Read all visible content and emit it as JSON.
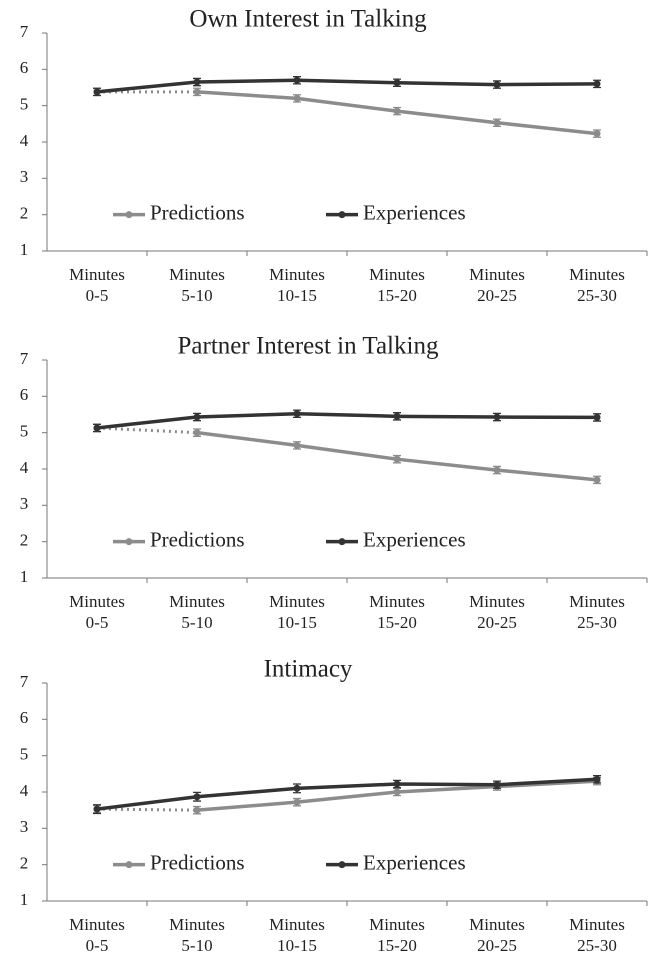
{
  "chart_data": [
    {
      "type": "line",
      "title": "Own Interest in Talking",
      "categories": [
        "Minutes\n0-5",
        "Minutes\n5-10",
        "Minutes\n10-15",
        "Minutes\n15-20",
        "Minutes\n20-25",
        "Minutes\n25-30"
      ],
      "ylim": [
        1,
        7
      ],
      "yticks": [
        1,
        2,
        3,
        4,
        5,
        6,
        7
      ],
      "series": [
        {
          "name": "Predictions",
          "color": "#8c8c8c",
          "line_style_first_segment": "dotted",
          "values": [
            5.38,
            5.38,
            5.2,
            4.85,
            4.53,
            4.23
          ],
          "errors": [
            0.1,
            0.1,
            0.1,
            0.1,
            0.1,
            0.1
          ]
        },
        {
          "name": "Experiences",
          "color": "#333333",
          "values": [
            5.38,
            5.65,
            5.7,
            5.63,
            5.58,
            5.6
          ],
          "errors": [
            0.1,
            0.1,
            0.1,
            0.1,
            0.1,
            0.1
          ]
        }
      ]
    },
    {
      "type": "line",
      "title": "Partner Interest in Talking",
      "categories": [
        "Minutes\n0-5",
        "Minutes\n5-10",
        "Minutes\n10-15",
        "Minutes\n15-20",
        "Minutes\n20-25",
        "Minutes\n25-30"
      ],
      "ylim": [
        1,
        7
      ],
      "yticks": [
        1,
        2,
        3,
        4,
        5,
        6,
        7
      ],
      "series": [
        {
          "name": "Predictions",
          "color": "#8c8c8c",
          "line_style_first_segment": "dotted",
          "values": [
            5.13,
            5.0,
            4.65,
            4.27,
            3.97,
            3.7
          ],
          "errors": [
            0.1,
            0.1,
            0.1,
            0.1,
            0.1,
            0.1
          ]
        },
        {
          "name": "Experiences",
          "color": "#333333",
          "values": [
            5.13,
            5.43,
            5.52,
            5.45,
            5.43,
            5.42
          ],
          "errors": [
            0.1,
            0.1,
            0.1,
            0.1,
            0.1,
            0.1
          ]
        }
      ]
    },
    {
      "type": "line",
      "title": "Intimacy",
      "categories": [
        "Minutes\n0-5",
        "Minutes\n5-10",
        "Minutes\n10-15",
        "Minutes\n15-20",
        "Minutes\n20-25",
        "Minutes\n25-30"
      ],
      "ylim": [
        1,
        7
      ],
      "yticks": [
        1,
        2,
        3,
        4,
        5,
        6,
        7
      ],
      "series": [
        {
          "name": "Predictions",
          "color": "#8c8c8c",
          "line_style_first_segment": "dotted",
          "values": [
            3.53,
            3.5,
            3.72,
            4.0,
            4.15,
            4.3
          ],
          "errors": [
            0.1,
            0.1,
            0.1,
            0.1,
            0.1,
            0.1
          ]
        },
        {
          "name": "Experiences",
          "color": "#333333",
          "values": [
            3.53,
            3.87,
            4.1,
            4.22,
            4.2,
            4.35
          ],
          "errors": [
            0.12,
            0.12,
            0.12,
            0.1,
            0.1,
            0.1
          ]
        }
      ]
    }
  ]
}
